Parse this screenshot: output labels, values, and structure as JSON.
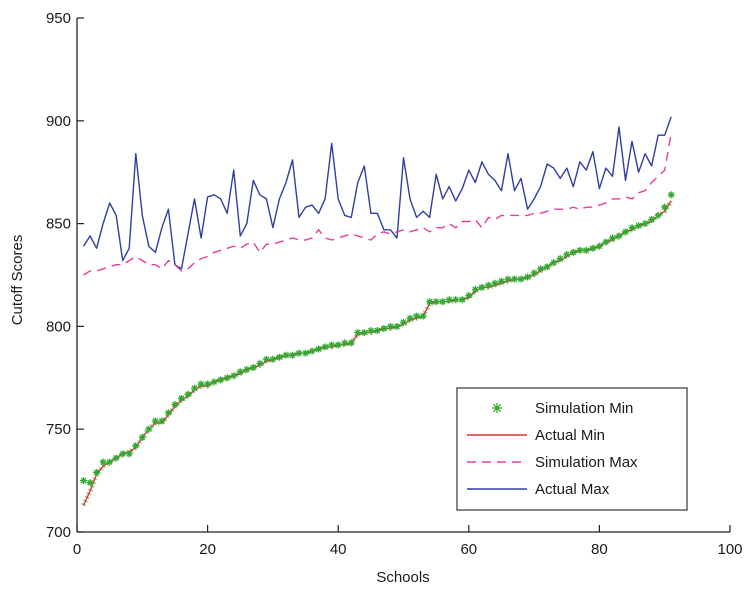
{
  "chart_data": {
    "type": "line",
    "xlabel": "Schools",
    "ylabel": "Cutoff Scores",
    "xlim": [
      0,
      100
    ],
    "ylim": [
      700,
      950
    ],
    "x_ticks": [
      0,
      20,
      40,
      60,
      80,
      100
    ],
    "y_ticks": [
      700,
      750,
      800,
      850,
      900,
      950
    ],
    "legend_position": "bottom-right",
    "grid": false,
    "colors": {
      "sim_min_marker": "#2eaa2e",
      "actual_min": "#e0303a",
      "sim_max": "#e0409a",
      "actual_max": "#2f3f9f",
      "axis": "#222222"
    },
    "series": [
      {
        "name": "Simulation Min",
        "style": "marker",
        "x": [
          1,
          2,
          3,
          4,
          5,
          6,
          7,
          8,
          9,
          10,
          11,
          12,
          13,
          14,
          15,
          16,
          17,
          18,
          19,
          20,
          21,
          22,
          23,
          24,
          25,
          26,
          27,
          28,
          29,
          30,
          31,
          32,
          33,
          34,
          35,
          36,
          37,
          38,
          39,
          40,
          41,
          42,
          43,
          44,
          45,
          46,
          47,
          48,
          49,
          50,
          51,
          52,
          53,
          54,
          55,
          56,
          57,
          58,
          59,
          60,
          61,
          62,
          63,
          64,
          65,
          66,
          67,
          68,
          69,
          70,
          71,
          72,
          73,
          74,
          75,
          76,
          77,
          78,
          79,
          80,
          81,
          82,
          83,
          84,
          85,
          86,
          87,
          88,
          89,
          90,
          91
        ],
        "values": [
          725,
          724,
          729,
          734,
          734,
          736,
          738,
          738,
          742,
          746,
          750,
          754,
          754,
          758,
          762,
          765,
          767,
          770,
          772,
          772,
          773,
          774,
          775,
          776,
          778,
          779,
          780,
          782,
          784,
          784,
          785,
          786,
          786,
          787,
          787,
          788,
          789,
          790,
          791,
          791,
          792,
          792,
          797,
          797,
          798,
          798,
          799,
          800,
          800,
          802,
          804,
          805,
          805,
          812,
          812,
          812,
          813,
          813,
          813,
          815,
          818,
          819,
          820,
          821,
          822,
          823,
          823,
          823,
          824,
          826,
          828,
          829,
          831,
          833,
          835,
          836,
          837,
          837,
          838,
          839,
          841,
          843,
          844,
          846,
          848,
          849,
          850,
          852,
          854,
          858,
          864
        ]
      },
      {
        "name": "Actual Min",
        "style": "solid",
        "x": [
          1,
          2,
          3,
          4,
          5,
          6,
          7,
          8,
          9,
          10,
          11,
          12,
          13,
          14,
          15,
          16,
          17,
          18,
          19,
          20,
          21,
          22,
          23,
          24,
          25,
          26,
          27,
          28,
          29,
          30,
          31,
          32,
          33,
          34,
          35,
          36,
          37,
          38,
          39,
          40,
          41,
          42,
          43,
          44,
          45,
          46,
          47,
          48,
          49,
          50,
          51,
          52,
          53,
          54,
          55,
          56,
          57,
          58,
          59,
          60,
          61,
          62,
          63,
          64,
          65,
          66,
          67,
          68,
          69,
          70,
          71,
          72,
          73,
          74,
          75,
          76,
          77,
          78,
          79,
          80,
          81,
          82,
          83,
          84,
          85,
          86,
          87,
          88,
          89,
          90,
          91
        ],
        "values": [
          713,
          720,
          728,
          732,
          734,
          736,
          738,
          739,
          741,
          746,
          750,
          753,
          753,
          757,
          761,
          764,
          766,
          769,
          771,
          771,
          773,
          774,
          775,
          776,
          777,
          779,
          780,
          781,
          783,
          784,
          785,
          786,
          786,
          787,
          787,
          788,
          789,
          790,
          790,
          791,
          791,
          792,
          796,
          797,
          797,
          798,
          799,
          799,
          800,
          801,
          803,
          804,
          805,
          811,
          812,
          812,
          812,
          813,
          813,
          814,
          817,
          819,
          819,
          820,
          821,
          822,
          823,
          823,
          824,
          825,
          827,
          829,
          831,
          832,
          834,
          836,
          837,
          837,
          838,
          839,
          841,
          842,
          844,
          846,
          847,
          849,
          850,
          851,
          854,
          856,
          861
        ]
      },
      {
        "name": "Simulation Max",
        "style": "dashed",
        "x": [
          1,
          2,
          3,
          4,
          5,
          6,
          7,
          8,
          9,
          10,
          11,
          12,
          13,
          14,
          15,
          16,
          17,
          18,
          19,
          20,
          21,
          22,
          23,
          24,
          25,
          26,
          27,
          28,
          29,
          30,
          31,
          32,
          33,
          34,
          35,
          36,
          37,
          38,
          39,
          40,
          41,
          42,
          43,
          44,
          45,
          46,
          47,
          48,
          49,
          50,
          51,
          52,
          53,
          54,
          55,
          56,
          57,
          58,
          59,
          60,
          61,
          62,
          63,
          64,
          65,
          66,
          67,
          68,
          69,
          70,
          71,
          72,
          73,
          74,
          75,
          76,
          77,
          78,
          79,
          80,
          81,
          82,
          83,
          84,
          85,
          86,
          87,
          88,
          89,
          90,
          91
        ],
        "values": [
          825,
          827,
          827,
          828,
          829,
          830,
          830,
          832,
          834,
          832,
          830,
          830,
          828,
          832,
          830,
          827,
          828,
          831,
          833,
          834,
          836,
          837,
          838,
          839,
          838,
          840,
          841,
          836,
          840,
          840,
          841,
          842,
          843,
          842,
          842,
          843,
          847,
          843,
          842,
          843,
          844,
          845,
          844,
          843,
          842,
          845,
          846,
          845,
          846,
          847,
          846,
          847,
          848,
          846,
          848,
          848,
          850,
          848,
          851,
          851,
          852,
          848,
          853,
          852,
          854,
          854,
          854,
          854,
          854,
          855,
          855,
          856,
          857,
          857,
          857,
          858,
          857,
          858,
          858,
          859,
          860,
          862,
          862,
          863,
          862,
          865,
          866,
          870,
          873,
          876,
          894
        ]
      },
      {
        "name": "Actual Max",
        "style": "solid",
        "x": [
          1,
          2,
          3,
          4,
          5,
          6,
          7,
          8,
          9,
          10,
          11,
          12,
          13,
          14,
          15,
          16,
          17,
          18,
          19,
          20,
          21,
          22,
          23,
          24,
          25,
          26,
          27,
          28,
          29,
          30,
          31,
          32,
          33,
          34,
          35,
          36,
          37,
          38,
          39,
          40,
          41,
          42,
          43,
          44,
          45,
          46,
          47,
          48,
          49,
          50,
          51,
          52,
          53,
          54,
          55,
          56,
          57,
          58,
          59,
          60,
          61,
          62,
          63,
          64,
          65,
          66,
          67,
          68,
          69,
          70,
          71,
          72,
          73,
          74,
          75,
          76,
          77,
          78,
          79,
          80,
          81,
          82,
          83,
          84,
          85,
          86,
          87,
          88,
          89,
          90,
          91
        ],
        "values": [
          839,
          844,
          838,
          850,
          860,
          854,
          832,
          838,
          884,
          854,
          839,
          836,
          848,
          857,
          830,
          828,
          845,
          862,
          843,
          863,
          864,
          862,
          855,
          876,
          844,
          850,
          871,
          864,
          862,
          848,
          862,
          870,
          881,
          853,
          858,
          859,
          855,
          862,
          889,
          862,
          854,
          853,
          870,
          878,
          855,
          855,
          847,
          847,
          843,
          882,
          862,
          853,
          856,
          853,
          874,
          862,
          868,
          861,
          867,
          876,
          870,
          880,
          874,
          871,
          866,
          884,
          866,
          872,
          857,
          862,
          868,
          879,
          877,
          872,
          877,
          868,
          880,
          876,
          885,
          867,
          877,
          873,
          897,
          871,
          890,
          875,
          884,
          878,
          893,
          893,
          902
        ]
      }
    ]
  }
}
